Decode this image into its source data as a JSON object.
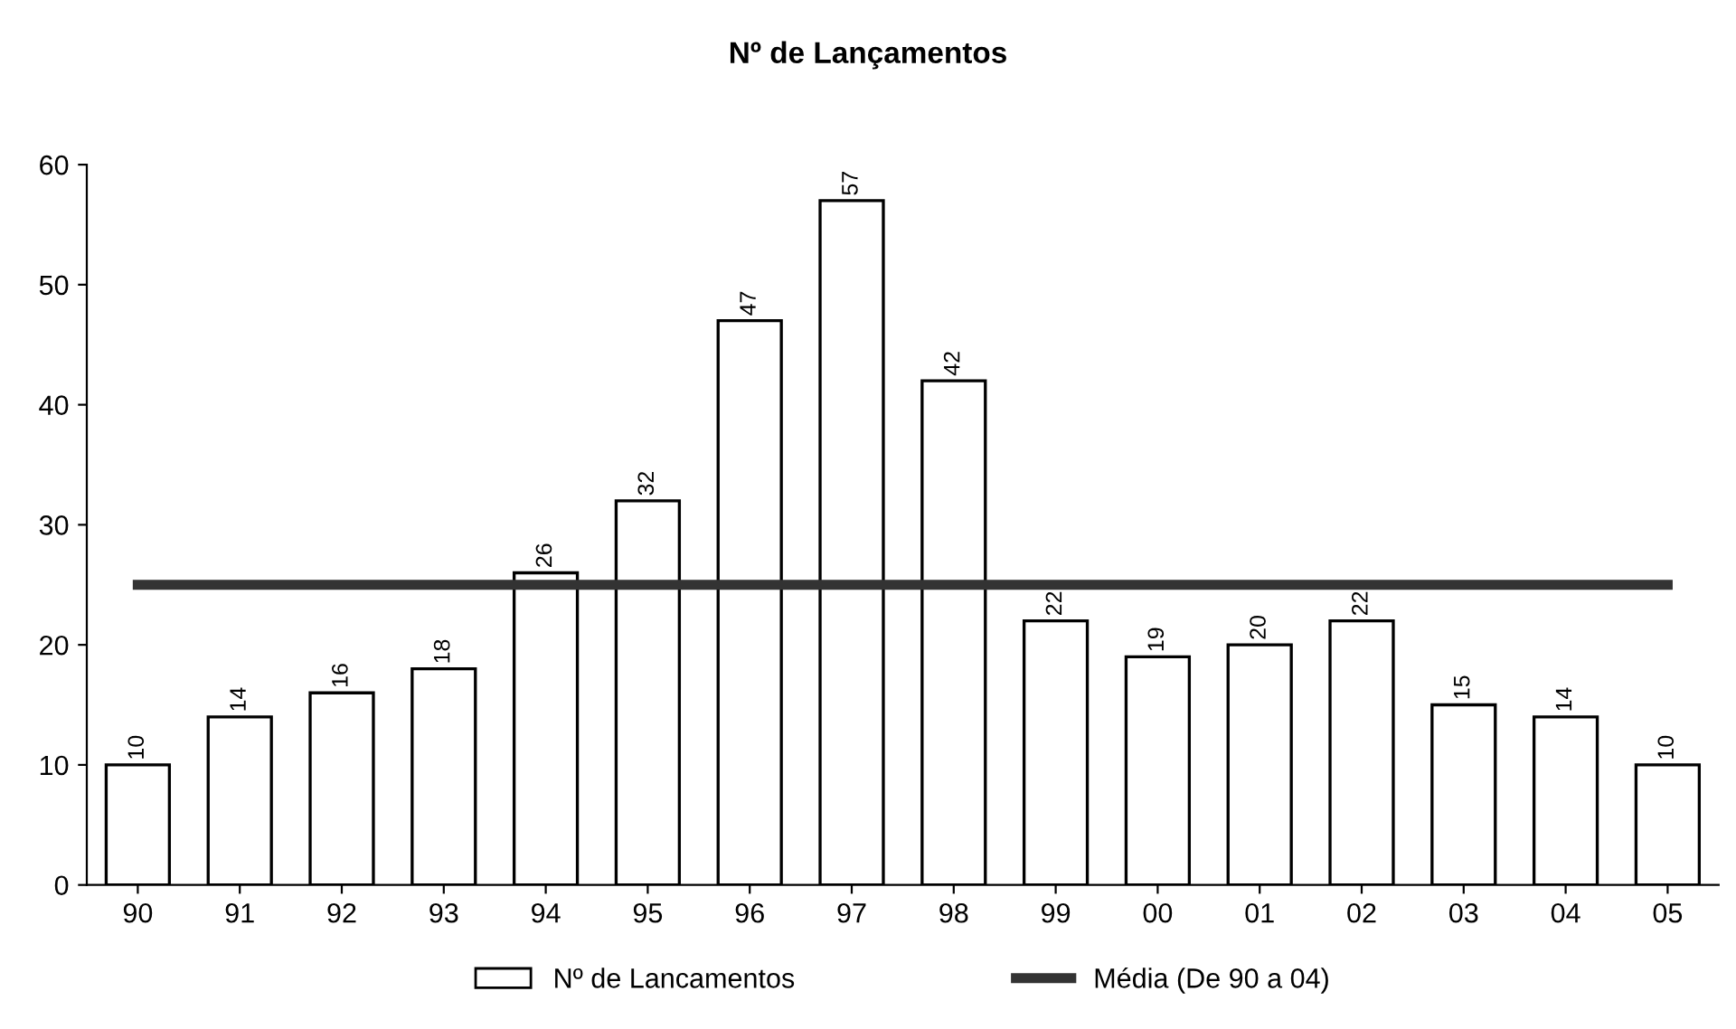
{
  "chart_data": {
    "type": "bar",
    "title": "Nº de Lançamentos",
    "categories": [
      "90",
      "91",
      "92",
      "93",
      "94",
      "95",
      "96",
      "97",
      "98",
      "99",
      "00",
      "01",
      "02",
      "03",
      "04",
      "05"
    ],
    "series": [
      {
        "name": "Nº de Lancamentos",
        "color": "#ffffff",
        "values": [
          10,
          14,
          16,
          18,
          26,
          32,
          47,
          57,
          42,
          22,
          19,
          20,
          22,
          15,
          14,
          10
        ],
        "value_labels": [
          "10",
          "14",
          "16",
          "18",
          "26",
          "32",
          "47",
          "57",
          "42",
          "22",
          "19",
          "20",
          "22",
          "15",
          "14",
          "10"
        ]
      },
      {
        "name": "Média (De 90 a 04)",
        "type": "line",
        "color": "#333333",
        "values": [
          25,
          25,
          25,
          25,
          25,
          25,
          25,
          25,
          25,
          25,
          25,
          25,
          25,
          25,
          25,
          25
        ]
      }
    ],
    "ylim": [
      0,
      60
    ],
    "yticks": [
      0,
      10,
      20,
      30,
      40,
      50,
      60
    ],
    "grid": false,
    "legend": "bottom"
  }
}
